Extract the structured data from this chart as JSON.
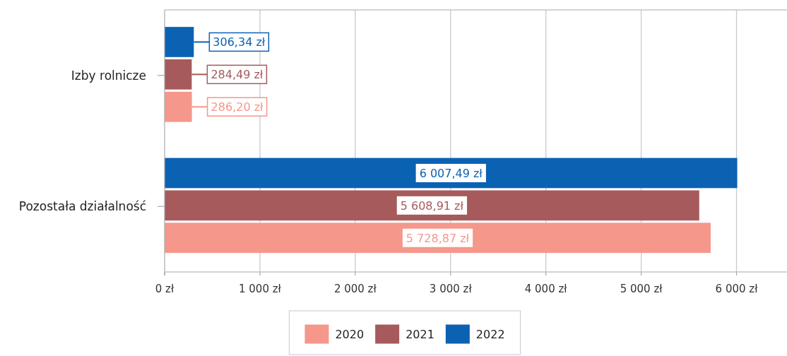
{
  "chart_data": {
    "type": "bar",
    "orientation": "horizontal",
    "categories": [
      "Izby rolnicze",
      "Pozostała działalność"
    ],
    "series": [
      {
        "name": "2020",
        "color": "#f5978b",
        "values": [
          286.2,
          5728.87
        ],
        "value_labels": [
          "286,20 zł",
          "5 728,87 zł"
        ]
      },
      {
        "name": "2021",
        "color": "#a65a5b",
        "values": [
          284.49,
          5608.91
        ],
        "value_labels": [
          "284,49 zł",
          "5 608,91 zł"
        ]
      },
      {
        "name": "2022",
        "color": "#0b62b3",
        "values": [
          306.34,
          6007.49
        ],
        "value_labels": [
          "306,34 zł",
          "6 007,49 zł"
        ]
      }
    ],
    "xlim": [
      0,
      6500
    ],
    "xticks": [
      {
        "value": 0,
        "label": "0 zł"
      },
      {
        "value": 1000,
        "label": "1 000 zł"
      },
      {
        "value": 2000,
        "label": "2 000 zł"
      },
      {
        "value": 3000,
        "label": "3 000 zł"
      },
      {
        "value": 4000,
        "label": "4 000 zł"
      },
      {
        "value": 5000,
        "label": "5 000 zł"
      },
      {
        "value": 6000,
        "label": "6 000 zł"
      }
    ],
    "grid": "x",
    "legend": "bottom"
  }
}
